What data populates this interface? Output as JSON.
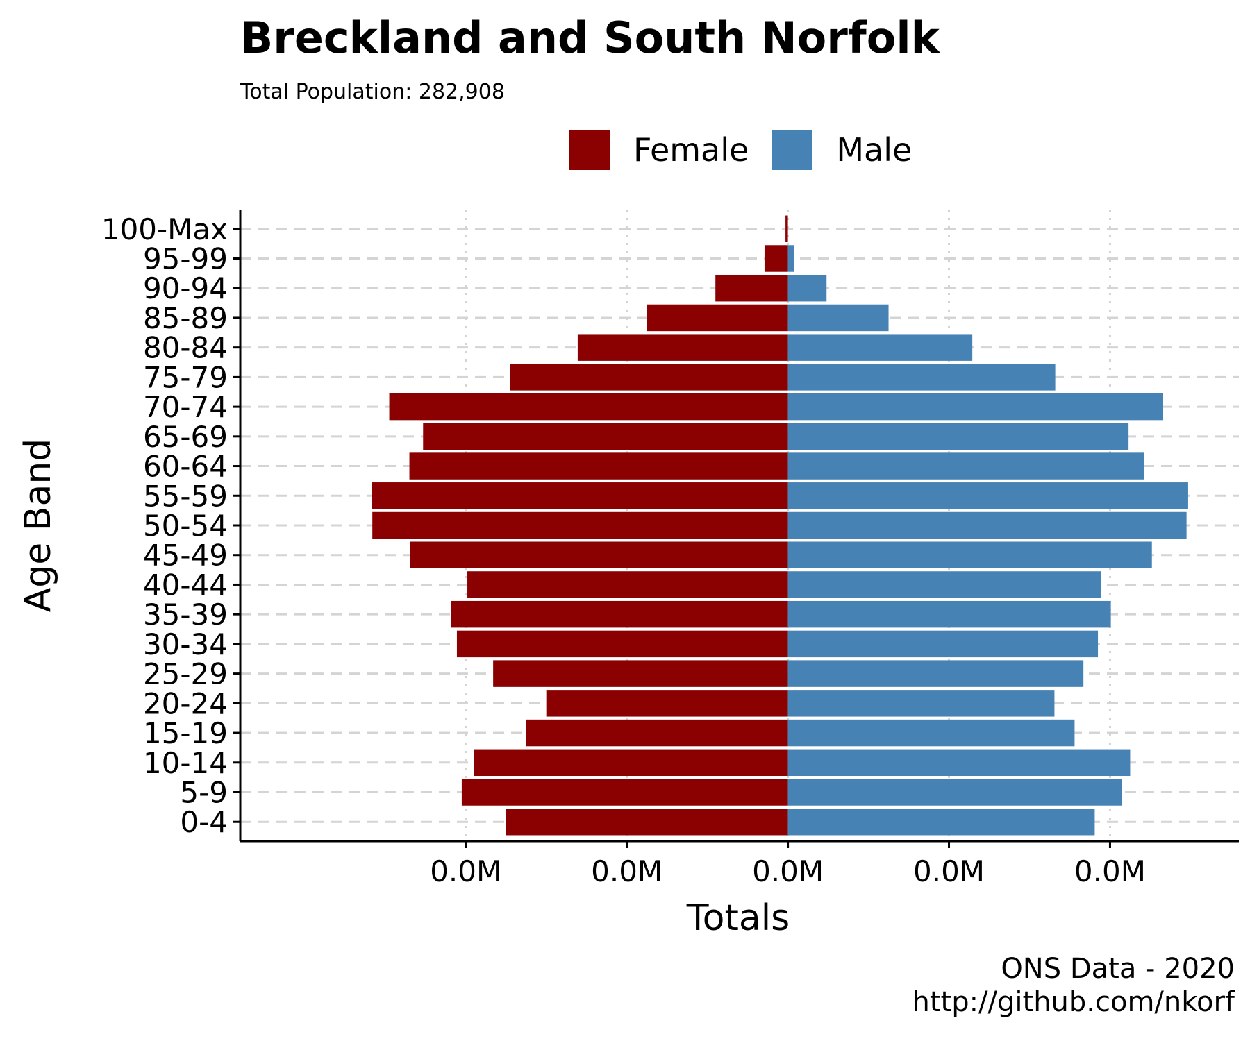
{
  "chart_data": {
    "type": "bar",
    "orientation": "horizontal-pyramid",
    "title": "Breckland and South Norfolk",
    "subtitle": "Total Population:  282,908",
    "xlabel": "Totals",
    "ylabel": "Age Band",
    "xlim": [
      -0.0034,
      0.0028
    ],
    "x_ticks": [
      -0.002,
      -0.001,
      0,
      0.001,
      0.002
    ],
    "x_tick_labels": [
      "0.0M",
      "0.0M",
      "0.0M",
      "0.0M",
      "0.0M"
    ],
    "categories": [
      "0-4",
      "5-9",
      "10-14",
      "15-19",
      "20-24",
      "25-29",
      "30-34",
      "35-39",
      "40-44",
      "45-49",
      "50-54",
      "55-59",
      "60-64",
      "65-69",
      "70-74",
      "75-79",
      "80-84",
      "85-89",
      "90-94",
      "95-99",
      "100-Max"
    ],
    "series": [
      {
        "name": "Female",
        "color": "#8B0000",
        "values": [
          -0.00175,
          -0.002025,
          -0.00195,
          -0.001625,
          -0.0015,
          -0.00183,
          -0.002055,
          -0.00209,
          -0.00199,
          -0.002345,
          -0.00258,
          -0.002585,
          -0.00235,
          -0.002265,
          -0.002475,
          -0.001725,
          -0.001305,
          -0.000875,
          -0.00045,
          -0.000145,
          -1.5e-05
        ]
      },
      {
        "name": "Male",
        "color": "#4682B4",
        "values": [
          0.001905,
          0.002075,
          0.002125,
          0.00178,
          0.001655,
          0.001835,
          0.001925,
          0.002005,
          0.001945,
          0.00226,
          0.002475,
          0.002485,
          0.00221,
          0.002115,
          0.00233,
          0.00166,
          0.001145,
          0.000625,
          0.00024,
          4e-05,
          0.0
        ]
      }
    ],
    "legend": {
      "position": "top",
      "entries": [
        "Female",
        "Male"
      ]
    },
    "grid": {
      "x": "dotted",
      "y": "dashed"
    },
    "caption": [
      "ONS Data - 2020",
      "http://github.com/nkorf"
    ]
  }
}
